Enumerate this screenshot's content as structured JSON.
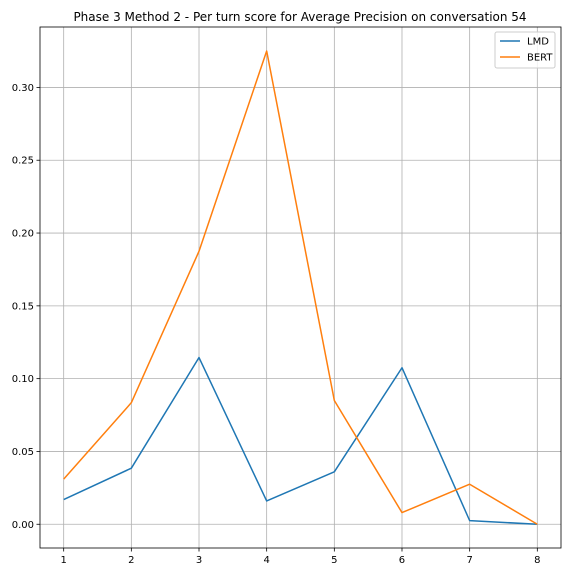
{
  "chart_data": {
    "type": "line",
    "title": "Phase 3 Method 2 - Per turn score for Average Precision on conversation 54",
    "xlabel": "",
    "ylabel": "",
    "x": [
      1,
      2,
      3,
      4,
      5,
      6,
      7,
      8
    ],
    "xlim": [
      0.65,
      8.35
    ],
    "ylim": [
      -0.0163,
      0.3415
    ],
    "xticks": [
      1,
      2,
      3,
      4,
      5,
      6,
      7,
      8
    ],
    "xtick_labels": [
      "1",
      "2",
      "3",
      "4",
      "5",
      "6",
      "7",
      "8"
    ],
    "yticks": [
      0,
      0.05,
      0.1,
      0.15,
      0.2,
      0.25,
      0.3
    ],
    "ytick_labels": [
      "0.00",
      "0.05",
      "0.10",
      "0.15",
      "0.20",
      "0.25",
      "0.30"
    ],
    "grid": true,
    "legend_position": "top-right",
    "series": [
      {
        "name": "LMD",
        "color": "#1f77b4",
        "values": [
          0.017,
          0.0385,
          0.1145,
          0.016,
          0.036,
          0.1075,
          0.0025,
          0.0
        ]
      },
      {
        "name": "BERT",
        "color": "#ff7f0e",
        "values": [
          0.031,
          0.0835,
          0.1875,
          0.325,
          0.085,
          0.008,
          0.0275,
          0.0
        ]
      }
    ]
  }
}
